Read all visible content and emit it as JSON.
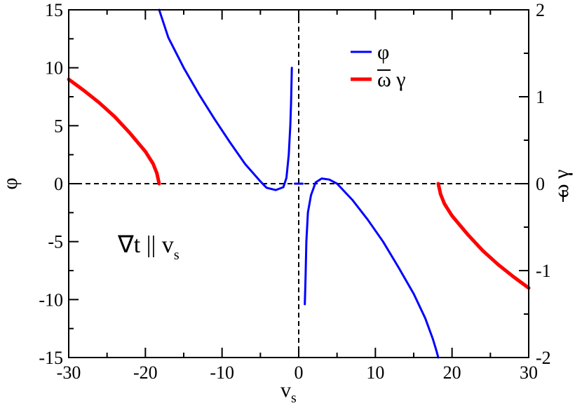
{
  "chart_data": {
    "type": "line",
    "xlabel": "v",
    "xlabel_sub": "s",
    "ylabel_left": "φ",
    "ylabel_right": "ω γ",
    "xlim": [
      -30,
      30
    ],
    "ylim_left": [
      -15,
      15
    ],
    "ylim_right": [
      -2,
      2
    ],
    "x_ticks": [
      -30,
      -20,
      -10,
      0,
      10,
      20,
      30
    ],
    "y_ticks_left": [
      -15,
      -10,
      -5,
      0,
      5,
      10,
      15
    ],
    "y_ticks_right": [
      -2,
      -1,
      0,
      1,
      2
    ],
    "legend": {
      "placement": "top-right",
      "entries": [
        {
          "label": "φ",
          "color": "#0000ff"
        },
        {
          "label": "ω γ",
          "color": "#ff0000"
        }
      ]
    },
    "annotation": {
      "text": "∇t  || v",
      "sub": "s"
    },
    "zero_lines": {
      "horizontal_y": 0,
      "vertical_x": 0,
      "style": "dashed"
    },
    "series": [
      {
        "name": "φ",
        "color": "#0000ff",
        "axis": "left",
        "segments": [
          [
            [
              -18.2,
              15
            ],
            [
              -17,
              12.6
            ],
            [
              -15,
              10
            ],
            [
              -13,
              7.7
            ],
            [
              -11,
              5.6
            ],
            [
              -9,
              3.6
            ],
            [
              -7,
              1.7
            ],
            [
              -5,
              0.2
            ],
            [
              -4.2,
              -0.35
            ],
            [
              -3,
              -0.55
            ],
            [
              -2,
              -0.3
            ],
            [
              -1.6,
              0.5
            ],
            [
              -1.3,
              2.5
            ],
            [
              -1.1,
              5
            ],
            [
              -1.0,
              7
            ],
            [
              -0.9,
              10
            ]
          ],
          [
            [
              0.5,
              0
            ],
            [
              -0.5,
              0
            ]
          ],
          [
            [
              0.8,
              -10.4
            ],
            [
              0.9,
              -8
            ],
            [
              1.0,
              -5
            ],
            [
              1.2,
              -2.5
            ],
            [
              1.6,
              -1
            ],
            [
              2.2,
              0.1
            ],
            [
              3,
              0.45
            ],
            [
              4,
              0.35
            ],
            [
              5,
              0
            ],
            [
              7,
              -1.4
            ],
            [
              9,
              -3.1
            ],
            [
              11,
              -5
            ],
            [
              13,
              -7.2
            ],
            [
              15,
              -9.5
            ],
            [
              16.5,
              -11.6
            ],
            [
              17.5,
              -13.4
            ],
            [
              18,
              -14.5
            ],
            [
              18.2,
              -15
            ]
          ]
        ]
      },
      {
        "name": "ω γ",
        "color": "#ff0000",
        "axis": "right",
        "segments": [
          [
            [
              -30,
              1.2
            ],
            [
              -28,
              1.07
            ],
            [
              -26,
              0.93
            ],
            [
              -24,
              0.77
            ],
            [
              -22,
              0.58
            ],
            [
              -20,
              0.37
            ],
            [
              -19,
              0.23
            ],
            [
              -18.5,
              0.12
            ],
            [
              -18.2,
              0
            ]
          ],
          [
            [
              18.2,
              0
            ],
            [
              18.5,
              -0.12
            ],
            [
              19,
              -0.23
            ],
            [
              20,
              -0.37
            ],
            [
              22,
              -0.58
            ],
            [
              24,
              -0.77
            ],
            [
              26,
              -0.93
            ],
            [
              28,
              -1.07
            ],
            [
              30,
              -1.2
            ]
          ]
        ]
      }
    ]
  }
}
